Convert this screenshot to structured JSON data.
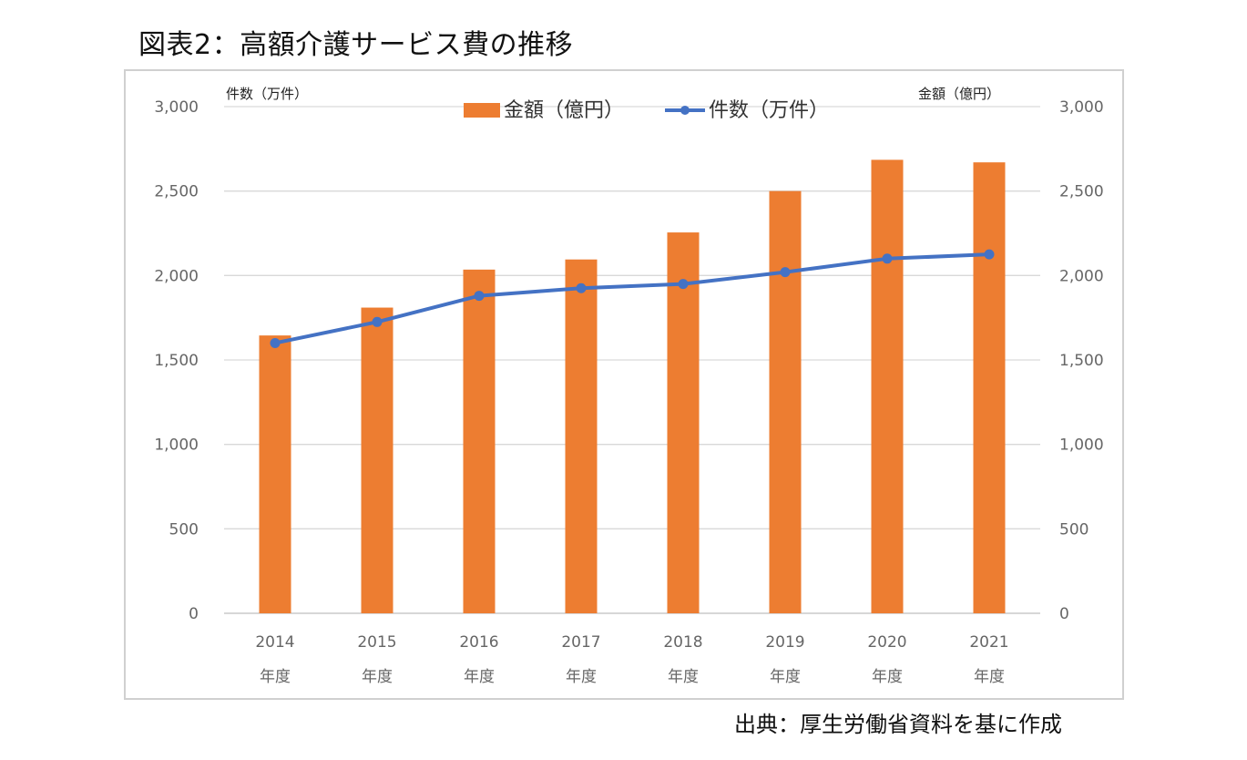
{
  "figure_title": "図表2：高額介護サービス費の推移",
  "source_note": "出典：厚生労働省資料を基に作成",
  "colors": {
    "bar": "#ED7D31",
    "line": "#4472C4",
    "grid": "#d9d9d9"
  },
  "chart_data": {
    "type": "bar",
    "categories": [
      "2014",
      "2015",
      "2016",
      "2017",
      "2018",
      "2019",
      "2020",
      "2021"
    ],
    "category_suffix": "年度",
    "series": [
      {
        "name": "金額（億円）",
        "type": "bar",
        "axis": "right",
        "values": [
          1645,
          1810,
          2035,
          2095,
          2255,
          2500,
          2685,
          2670
        ]
      },
      {
        "name": "件数（万件）",
        "type": "line",
        "axis": "left",
        "values": [
          1600,
          1725,
          1880,
          1925,
          1950,
          2020,
          2100,
          2125
        ]
      }
    ],
    "left_axis": {
      "label": "件数（万件）",
      "range": [
        0,
        3000
      ],
      "ticks": [
        "0",
        "500",
        "1,000",
        "1,500",
        "2,000",
        "2,500",
        "3,000"
      ]
    },
    "right_axis": {
      "label": "金額（億円）",
      "range": [
        0,
        3000
      ],
      "ticks": [
        "0",
        "500",
        "1,000",
        "1,500",
        "2,000",
        "2,500",
        "3,000"
      ]
    },
    "legend_position": "top-center",
    "grid": true
  }
}
